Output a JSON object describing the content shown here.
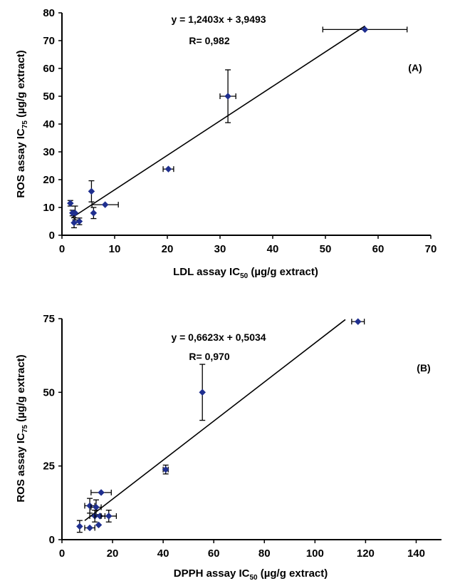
{
  "chart_data": [
    {
      "type": "scatter",
      "panel_label": "(A)",
      "equation": "y = 1,2403x + 3,9493",
      "r_text": "R= 0,982",
      "xlabel": {
        "pre": "LDL assay IC",
        "sub": "50",
        "post": " (µg/g extract)"
      },
      "ylabel": {
        "pre": "ROS assay IC",
        "sub": "75",
        "post": " (µg/g extract)"
      },
      "xlim": [
        0,
        70
      ],
      "ylim": [
        0,
        80
      ],
      "xticks": [
        "0",
        "10",
        "20",
        "30",
        "40",
        "50",
        "60",
        "70"
      ],
      "yticks": [
        "0",
        "10",
        "20",
        "30",
        "40",
        "50",
        "60",
        "70",
        "80"
      ],
      "marker_color": "#1f2f8f",
      "points": [
        {
          "x": 57.5,
          "y": 74,
          "xerr": 8,
          "yerr": 0
        },
        {
          "x": 31.5,
          "y": 50,
          "xerr": 1.5,
          "yerr": 9.5
        },
        {
          "x": 20.2,
          "y": 23.8,
          "xerr": 1.0,
          "yerr": 0
        },
        {
          "x": 8.2,
          "y": 11,
          "xerr": 2.5,
          "yerr": 0
        },
        {
          "x": 5.6,
          "y": 15.8,
          "xerr": 0,
          "yerr": 3.8
        },
        {
          "x": 6.0,
          "y": 8,
          "xerr": 0,
          "yerr": 2
        },
        {
          "x": 1.6,
          "y": 11.5,
          "xerr": 0,
          "yerr": 1
        },
        {
          "x": 2.0,
          "y": 8,
          "xerr": 0,
          "yerr": 1
        },
        {
          "x": 2.5,
          "y": 8,
          "xerr": 0,
          "yerr": 2.5
        },
        {
          "x": 2.3,
          "y": 4.5,
          "xerr": 0,
          "yerr": 1.8
        },
        {
          "x": 3.3,
          "y": 5,
          "xerr": 0,
          "yerr": 1.2
        }
      ],
      "fit": {
        "slope": 1.2403,
        "intercept": 3.9493,
        "x_from": 1.8,
        "x_to": 57.5
      }
    },
    {
      "type": "scatter",
      "panel_label": "(B)",
      "equation": "y = 0,6623x + 0,5034",
      "r_text": "R= 0,970",
      "xlabel": {
        "pre": "DPPH assay IC",
        "sub": "50",
        "post": " (µg/g extract)"
      },
      "ylabel": {
        "pre": "ROS assay IC",
        "sub": "75",
        "post": " (µg/g extract)"
      },
      "xlim": [
        0,
        150
      ],
      "ylim": [
        0,
        75
      ],
      "xticks": [
        "0",
        "20",
        "40",
        "60",
        "80",
        "100",
        "120",
        "140"
      ],
      "yticks": [
        "0",
        "25",
        "50",
        "75"
      ],
      "marker_color": "#1f2f8f",
      "points": [
        {
          "x": 117,
          "y": 74,
          "xerr": 2.5,
          "yerr": 0
        },
        {
          "x": 55.5,
          "y": 50,
          "xerr": 0,
          "yerr": 9.5
        },
        {
          "x": 41,
          "y": 23.8,
          "xerr": 1,
          "yerr": 1.5
        },
        {
          "x": 15.5,
          "y": 16,
          "xerr": 4,
          "yerr": 0
        },
        {
          "x": 11,
          "y": 11.5,
          "xerr": 2,
          "yerr": 2.5
        },
        {
          "x": 13.5,
          "y": 11,
          "xerr": 2,
          "yerr": 2.5
        },
        {
          "x": 13,
          "y": 8,
          "xerr": 2,
          "yerr": 2
        },
        {
          "x": 15,
          "y": 8,
          "xerr": 2,
          "yerr": 0
        },
        {
          "x": 18.5,
          "y": 8,
          "xerr": 3,
          "yerr": 2
        },
        {
          "x": 7,
          "y": 4.5,
          "xerr": 0,
          "yerr": 2
        },
        {
          "x": 11,
          "y": 4,
          "xerr": 2,
          "yerr": 0
        },
        {
          "x": 14.5,
          "y": 5,
          "xerr": 0,
          "yerr": 0
        }
      ],
      "fit": {
        "slope": 0.6623,
        "intercept": 0.5034,
        "x_from": 9,
        "x_to": 112
      }
    }
  ]
}
